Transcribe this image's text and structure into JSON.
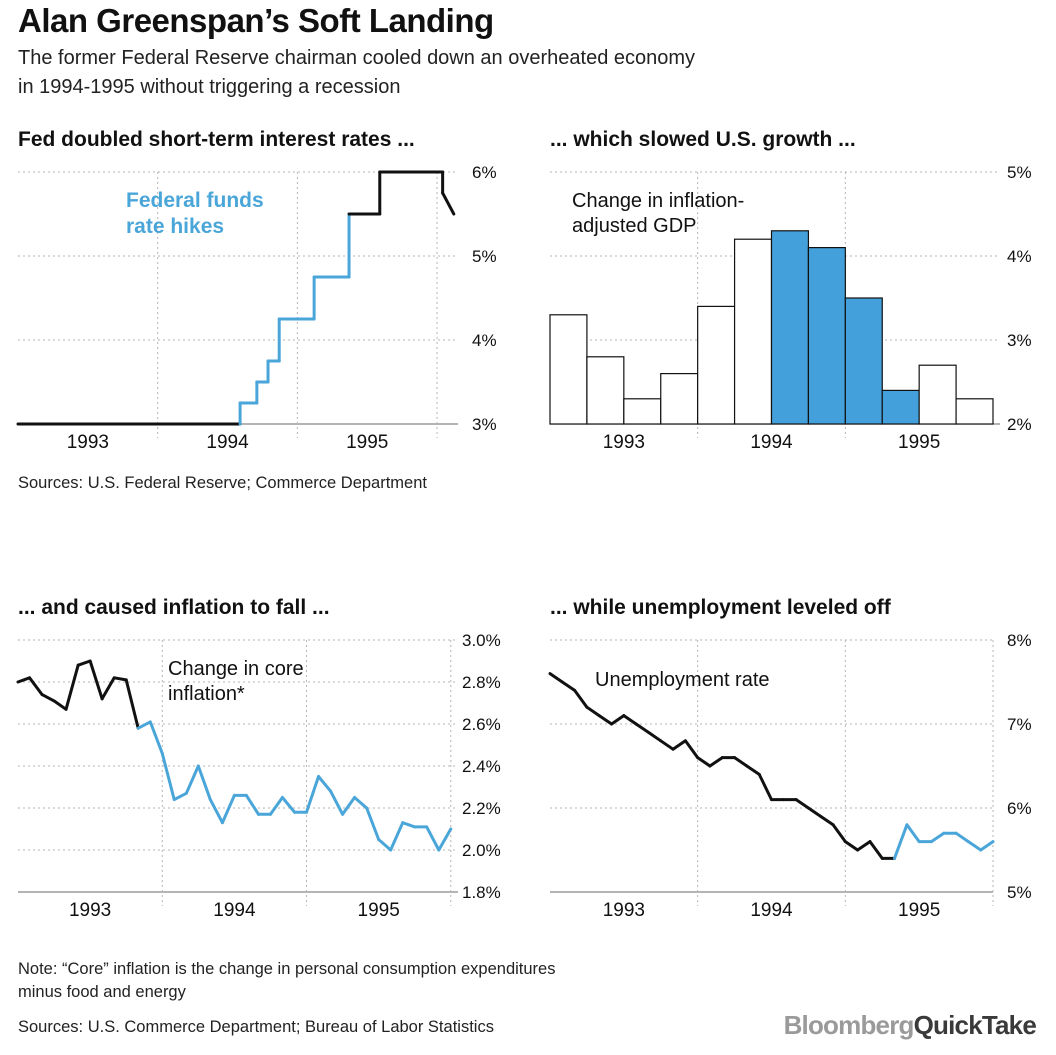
{
  "title": "Alan Greenspan’s Soft Landing",
  "subtitle_line1": "The former Federal Reserve chairman cooled down an overheated economy",
  "subtitle_line2": "in 1994-1995 without triggering a recession",
  "sources_top": "Sources: U.S. Federal Reserve; Commerce Department",
  "note_line1": "Note: “Core” inflation is the change in personal consumption expenditures",
  "note_line2": "minus food and energy",
  "sources_bottom": "Sources: U.S. Commerce Department; Bureau of Labor Statistics",
  "logo": {
    "part1": "Bloomberg",
    "part2": "QuickTake"
  },
  "colors": {
    "highlight": "#4aa6d9",
    "bar_fill": "#44a0db",
    "line": "#111111",
    "grid": "#b5b5b5"
  },
  "chart_data": [
    {
      "id": "fed-funds",
      "type": "line",
      "title": "Fed doubled short-term interest rates ...",
      "annotation": [
        "Federal funds",
        "rate hikes"
      ],
      "x_ticks": [
        "1993",
        "1994",
        "1995"
      ],
      "x_range": [
        1992.5,
        1995.65
      ],
      "ylim": [
        3,
        6
      ],
      "y_ticks": [
        3,
        4,
        5,
        6
      ],
      "y_tick_labels": [
        "3%",
        "4%",
        "5%",
        "6%"
      ],
      "highlight_range": [
        1994.0,
        1995.0
      ],
      "x": [
        1992.5,
        1994.09,
        1994.09,
        1994.21,
        1994.21,
        1994.29,
        1994.29,
        1994.37,
        1994.37,
        1994.62,
        1994.62,
        1994.87,
        1994.87,
        1995.09,
        1995.09,
        1995.54,
        1995.54,
        1995.62
      ],
      "values": [
        3.0,
        3.0,
        3.25,
        3.25,
        3.5,
        3.5,
        3.75,
        3.75,
        4.25,
        4.25,
        4.75,
        4.75,
        5.5,
        5.5,
        6.0,
        6.0,
        5.75,
        5.5
      ]
    },
    {
      "id": "gdp",
      "type": "bar",
      "title": "... which slowed U.S. growth ...",
      "annotation": [
        "Change in inflation-",
        "adjusted GDP"
      ],
      "x_ticks": [
        "1993",
        "1994",
        "1995"
      ],
      "ylim": [
        2,
        5
      ],
      "y_ticks": [
        2,
        3,
        4,
        5
      ],
      "y_tick_labels": [
        "2%",
        "3%",
        "4%",
        "5%"
      ],
      "categories": [
        "1993 Q1",
        "1993 Q2",
        "1993 Q3",
        "1993 Q4",
        "1994 Q1",
        "1994 Q2",
        "1994 Q3",
        "1994 Q4",
        "1995 Q1",
        "1995 Q2",
        "1995 Q3",
        "1995 Q4"
      ],
      "values": [
        3.3,
        2.8,
        2.3,
        2.6,
        3.4,
        4.2,
        4.3,
        4.1,
        3.5,
        2.4,
        2.7,
        2.3
      ],
      "highlighted": [
        false,
        false,
        false,
        false,
        false,
        false,
        true,
        true,
        true,
        true,
        false,
        false
      ]
    },
    {
      "id": "core-inflation",
      "type": "line",
      "title": "... and caused inflation to fall ...",
      "annotation": [
        "Change in core",
        "inflation*"
      ],
      "x_ticks": [
        "1993",
        "1994",
        "1995"
      ],
      "x_range": [
        1992.5,
        1995.55
      ],
      "ylim": [
        1.8,
        3.0
      ],
      "y_ticks": [
        1.8,
        2.0,
        2.2,
        2.4,
        2.6,
        2.8,
        3.0
      ],
      "y_tick_labels": [
        "1.8%",
        "2.0%",
        "2.2%",
        "2.4%",
        "2.6%",
        "2.8%",
        "3.0%"
      ],
      "highlight_from": 1993.33,
      "x": [
        1992.5,
        1992.58,
        1992.667,
        1992.75,
        1992.833,
        1992.917,
        1993.0,
        1993.083,
        1993.167,
        1993.25,
        1993.333,
        1993.417,
        1993.5,
        1993.583,
        1993.667,
        1993.75,
        1993.833,
        1993.917,
        1994.0,
        1994.083,
        1994.167,
        1994.25,
        1994.333,
        1994.417,
        1994.5,
        1994.583,
        1994.667,
        1994.75,
        1994.833,
        1994.917,
        1995.0,
        1995.083,
        1995.167,
        1995.25,
        1995.333,
        1995.417,
        1995.5
      ],
      "values": [
        2.8,
        2.82,
        2.74,
        2.71,
        2.67,
        2.88,
        2.9,
        2.72,
        2.82,
        2.81,
        2.58,
        2.61,
        2.46,
        2.24,
        2.27,
        2.4,
        2.24,
        2.13,
        2.26,
        2.26,
        2.17,
        2.17,
        2.25,
        2.18,
        2.18,
        2.35,
        2.28,
        2.17,
        2.25,
        2.2,
        2.05,
        2.0,
        2.13,
        2.11,
        2.11,
        2.0,
        2.1
      ]
    },
    {
      "id": "unemployment",
      "type": "line",
      "title": "... while unemployment leveled off",
      "annotation": [
        "Unemployment rate"
      ],
      "x_ticks": [
        "1993",
        "1994",
        "1995"
      ],
      "x_range": [
        1992.5,
        1995.5
      ],
      "ylim": [
        5,
        8
      ],
      "y_ticks": [
        5,
        6,
        7,
        8
      ],
      "y_tick_labels": [
        "5%",
        "6%",
        "7%",
        "8%"
      ],
      "highlight_from": 1994.83,
      "x": [
        1992.5,
        1992.583,
        1992.667,
        1992.75,
        1992.833,
        1992.917,
        1993.0,
        1993.083,
        1993.167,
        1993.25,
        1993.333,
        1993.417,
        1993.5,
        1993.583,
        1993.667,
        1993.75,
        1993.833,
        1993.917,
        1994.0,
        1994.083,
        1994.167,
        1994.25,
        1994.333,
        1994.417,
        1994.5,
        1994.583,
        1994.667,
        1994.75,
        1994.833,
        1994.917,
        1995.0,
        1995.083,
        1995.167,
        1995.25,
        1995.333,
        1995.417,
        1995.5
      ],
      "values": [
        7.6,
        7.5,
        7.4,
        7.2,
        7.1,
        7.0,
        7.1,
        7.0,
        6.9,
        6.8,
        6.7,
        6.8,
        6.6,
        6.5,
        6.6,
        6.6,
        6.5,
        6.4,
        6.1,
        6.1,
        6.1,
        6.0,
        5.9,
        5.8,
        5.6,
        5.5,
        5.6,
        5.4,
        5.4,
        5.8,
        5.6,
        5.6,
        5.7,
        5.7,
        5.6,
        5.5,
        5.6
      ]
    }
  ]
}
